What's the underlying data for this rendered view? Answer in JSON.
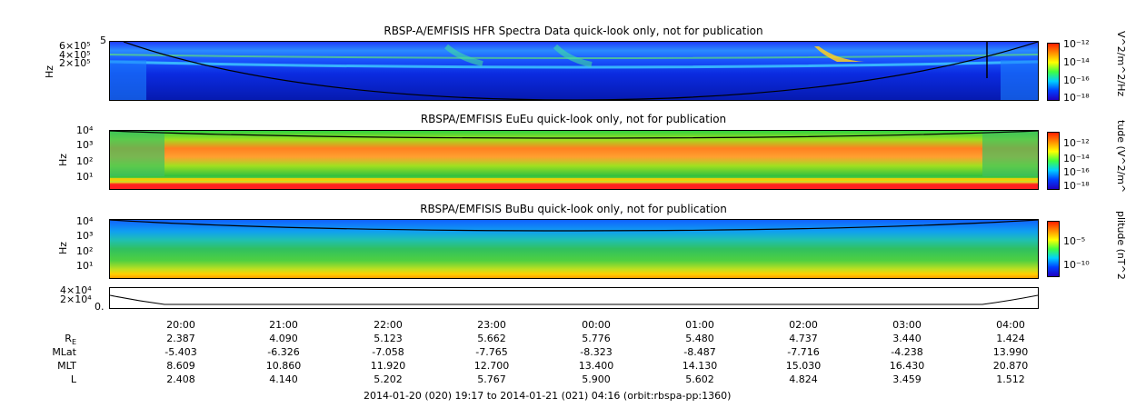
{
  "chart_data": [
    {
      "type": "heatmap",
      "title": "RBSP-A/EMFISIS  HFR Spectra Data quick-look only, not for publication",
      "ylabel": "Hz",
      "ytick_labels": [
        "6×10⁵",
        "5",
        "4×10⁵",
        "2×10⁵"
      ],
      "colorbar_label": "V^2/m^2/Hz",
      "colorbar_ticks": [
        "10⁻¹²",
        "10⁻¹⁴",
        "10⁻¹⁶",
        "10⁻¹⁸"
      ],
      "colorscale": "rainbow",
      "overlay": "black curve"
    },
    {
      "type": "heatmap",
      "title": "RBSPA/EMFISIS  EuEu quick-look only, not for publication",
      "ylabel": "Hz",
      "ytick_labels": [
        "10⁴",
        "10³",
        "10²",
        "10¹"
      ],
      "colorbar_label": "tude (V^2/m^",
      "colorbar_ticks": [
        "10⁻¹²",
        "10⁻¹⁴",
        "10⁻¹⁶",
        "10⁻¹⁸"
      ],
      "colorscale": "rainbow",
      "overlay": "black curve"
    },
    {
      "type": "heatmap",
      "title": "RBSPA/EMFISIS  BuBu quick-look only, not for publication",
      "ylabel": "Hz",
      "ytick_labels": [
        "10⁴",
        "10³",
        "10²",
        "10¹"
      ],
      "colorbar_label": "plitude (nT^2",
      "colorbar_ticks": [
        "10⁻⁵",
        "10⁻¹⁰"
      ],
      "colorscale": "rainbow",
      "overlay": "black curve"
    },
    {
      "type": "line",
      "ytick_labels": [
        "4×10⁴",
        "2×10⁴",
        "0."
      ]
    }
  ],
  "x_axis": {
    "tick_labels": [
      "20:00",
      "21:00",
      "22:00",
      "23:00",
      "00:00",
      "01:00",
      "02:00",
      "03:00",
      "04:00"
    ]
  },
  "ephemeris": {
    "labels": [
      "R",
      "MLat",
      "MLT",
      "L"
    ],
    "r_subscript": "E",
    "rows": [
      [
        "2.387",
        "4.090",
        "5.123",
        "5.662",
        "5.776",
        "5.480",
        "4.737",
        "3.440",
        "1.424"
      ],
      [
        "-5.403",
        "-6.326",
        "-7.058",
        "-7.765",
        "-8.323",
        "-8.487",
        "-7.716",
        "-4.238",
        "13.990"
      ],
      [
        "8.609",
        "10.860",
        "11.920",
        "12.700",
        "13.400",
        "14.130",
        "15.030",
        "16.430",
        "20.870"
      ],
      [
        "2.408",
        "4.140",
        "5.202",
        "5.767",
        "5.900",
        "5.602",
        "4.824",
        "3.459",
        "1.512"
      ]
    ]
  },
  "footer": "2014-01-20 (020) 19:17 to 2014-01-21 (021) 04:16 (orbit:rbspa-pp:1360)"
}
